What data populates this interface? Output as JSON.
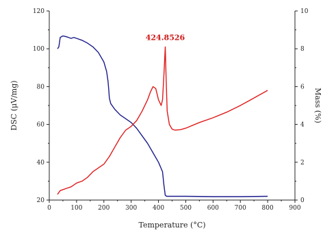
{
  "chart_data": {
    "type": "line",
    "xlabel": "Temperature (°C)",
    "ylabel_left": "DSC (μV/mg)",
    "ylabel_right": "Mass (%)",
    "xlim": [
      0,
      900
    ],
    "ylim_left": [
      20,
      120
    ],
    "ylim_right": [
      0,
      10
    ],
    "x_ticks": [
      "0",
      "100",
      "200",
      "300",
      "400",
      "500",
      "600",
      "700",
      "800",
      "900"
    ],
    "y_left_ticks": [
      "20",
      "40",
      "60",
      "80",
      "100",
      "120"
    ],
    "y_right_ticks": [
      "0",
      "2",
      "4",
      "6",
      "8",
      "10"
    ],
    "grid": false,
    "series": [
      {
        "axis": "right",
        "color": "#1a1a8c",
        "x": [
          30,
          35,
          40,
          50,
          60,
          70,
          80,
          90,
          100,
          120,
          140,
          160,
          180,
          200,
          210,
          215,
          218,
          220,
          225,
          240,
          260,
          280,
          300,
          320,
          340,
          360,
          380,
          400,
          415,
          420,
          425,
          430,
          450,
          500,
          600,
          700,
          800
        ],
        "y": [
          8.0,
          8.1,
          8.6,
          8.68,
          8.65,
          8.6,
          8.55,
          8.6,
          8.55,
          8.45,
          8.3,
          8.1,
          7.8,
          7.3,
          6.8,
          6.3,
          5.8,
          5.4,
          5.1,
          4.8,
          4.5,
          4.3,
          4.1,
          3.8,
          3.4,
          3.0,
          2.5,
          2.0,
          1.5,
          0.8,
          0.25,
          0.2,
          0.2,
          0.2,
          0.18,
          0.18,
          0.2
        ]
      },
      {
        "axis": "left",
        "color": "#e01a1a",
        "x": [
          30,
          40,
          50,
          60,
          80,
          100,
          120,
          140,
          160,
          180,
          200,
          220,
          240,
          260,
          280,
          300,
          320,
          340,
          360,
          370,
          380,
          390,
          400,
          410,
          415,
          420,
          424.85,
          428,
          432,
          440,
          450,
          460,
          480,
          500,
          550,
          600,
          650,
          700,
          750,
          800
        ],
        "y": [
          23,
          25,
          25.5,
          26,
          27,
          29,
          30,
          32,
          35,
          37,
          39,
          43,
          48,
          53,
          57,
          59,
          62,
          67,
          73,
          77,
          80,
          79,
          73,
          70,
          73,
          86,
          101,
          85,
          67,
          60,
          57.5,
          57,
          57.2,
          58,
          61,
          63.5,
          66.5,
          70,
          74,
          78
        ]
      }
    ],
    "annotations": [
      {
        "text": "424.8526",
        "x": 424.85,
        "y": 101
      }
    ]
  }
}
